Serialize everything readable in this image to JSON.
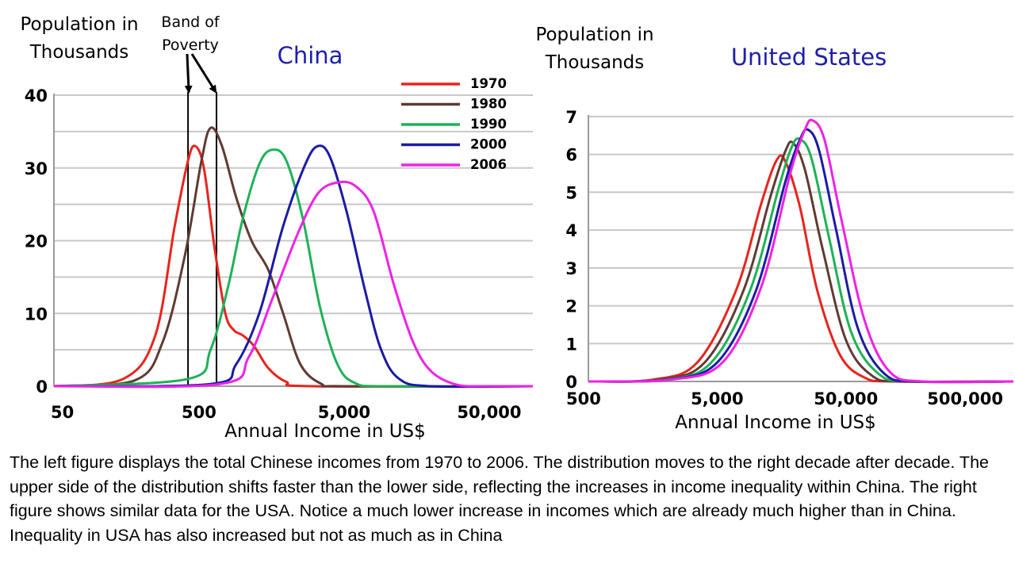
{
  "chart_data": [
    {
      "type": "line",
      "title": "China",
      "ylabel": "Population in Thousands",
      "xlabel": "Annual Income in US$",
      "x_scale": "log",
      "xlim": [
        50,
        100000
      ],
      "ylim": [
        0,
        40
      ],
      "yticks": [
        0,
        10,
        20,
        30,
        40
      ],
      "xticks": [
        {
          "value": 50,
          "label": "50"
        },
        {
          "value": 500,
          "label": "500"
        },
        {
          "value": 5000,
          "label": "5,000"
        },
        {
          "value": 50000,
          "label": "50,000"
        }
      ],
      "grid": true,
      "legend_position": "top-right",
      "band": {
        "label": "Band of Poverty",
        "from": 420,
        "to": 660
      },
      "series": [
        {
          "name": "1970",
          "color": "#e8241c",
          "points": [
            [
              50,
              0
            ],
            [
              150,
              1
            ],
            [
              250,
              7
            ],
            [
              340,
              22
            ],
            [
              420,
              31
            ],
            [
              470,
              33
            ],
            [
              540,
              30
            ],
            [
              640,
              19
            ],
            [
              760,
              10
            ],
            [
              870,
              7.7
            ],
            [
              1000,
              7
            ],
            [
              1200,
              5.5
            ],
            [
              1500,
              2.5
            ],
            [
              2000,
              0.6
            ],
            [
              3000,
              0
            ],
            [
              100000,
              0
            ]
          ]
        },
        {
          "name": "1980",
          "color": "#603a33",
          "points": [
            [
              50,
              0
            ],
            [
              180,
              0.8
            ],
            [
              280,
              6
            ],
            [
              400,
              18
            ],
            [
              520,
              31
            ],
            [
              600,
              35.5
            ],
            [
              720,
              33
            ],
            [
              900,
              26
            ],
            [
              1150,
              20
            ],
            [
              1500,
              16
            ],
            [
              1900,
              10
            ],
            [
              2500,
              3
            ],
            [
              3500,
              0.3
            ],
            [
              5000,
              0
            ],
            [
              100000,
              0
            ]
          ]
        },
        {
          "name": "1990",
          "color": "#1db257",
          "points": [
            [
              50,
              0
            ],
            [
              420,
              1
            ],
            [
              600,
              5
            ],
            [
              800,
              14
            ],
            [
              1000,
              23
            ],
            [
              1300,
              30.5
            ],
            [
              1600,
              32.5
            ],
            [
              2000,
              31
            ],
            [
              2600,
              23
            ],
            [
              3400,
              11
            ],
            [
              4500,
              3
            ],
            [
              6000,
              0.4
            ],
            [
              10000,
              0
            ],
            [
              100000,
              0
            ]
          ]
        },
        {
          "name": "2000",
          "color": "#1b1ba5",
          "points": [
            [
              50,
              0
            ],
            [
              600,
              0.3
            ],
            [
              900,
              3
            ],
            [
              1300,
              10
            ],
            [
              1900,
              22
            ],
            [
              2700,
              30.5
            ],
            [
              3300,
              33
            ],
            [
              4000,
              31.5
            ],
            [
              5200,
              24
            ],
            [
              7000,
              13
            ],
            [
              9000,
              5
            ],
            [
              12000,
              1
            ],
            [
              20000,
              0
            ],
            [
              100000,
              0
            ]
          ]
        },
        {
          "name": "2006",
          "color": "#ee22e6",
          "points": [
            [
              50,
              0
            ],
            [
              700,
              0.3
            ],
            [
              1100,
              4
            ],
            [
              1600,
              12
            ],
            [
              2400,
              21
            ],
            [
              3300,
              26.5
            ],
            [
              4500,
              28
            ],
            [
              6000,
              27.5
            ],
            [
              8000,
              24
            ],
            [
              11000,
              14
            ],
            [
              15000,
              6
            ],
            [
              20000,
              2
            ],
            [
              30000,
              0.2
            ],
            [
              50000,
              0
            ],
            [
              100000,
              0
            ]
          ]
        }
      ]
    },
    {
      "type": "line",
      "title": "United States",
      "ylabel": "Population in Thousands",
      "xlabel": "Annual Income in US$",
      "x_scale": "log",
      "xlim": [
        500,
        1000000
      ],
      "ylim": [
        0,
        7
      ],
      "yticks": [
        0,
        1,
        2,
        3,
        4,
        5,
        6,
        7
      ],
      "xticks": [
        {
          "value": 500,
          "label": "500"
        },
        {
          "value": 5000,
          "label": "5,000"
        },
        {
          "value": 50000,
          "label": "50,000"
        },
        {
          "value": 500000,
          "label": "500,000"
        }
      ],
      "grid": true,
      "series": [
        {
          "name": "1970",
          "color": "#e8241c",
          "points": [
            [
              500,
              0
            ],
            [
              1600,
              0.05
            ],
            [
              3500,
              0.5
            ],
            [
              7000,
              2.4
            ],
            [
              11000,
              4.7
            ],
            [
              14500,
              5.85
            ],
            [
              17000,
              5.8
            ],
            [
              22000,
              4.6
            ],
            [
              30000,
              2.4
            ],
            [
              45000,
              0.7
            ],
            [
              70000,
              0.1
            ],
            [
              120000,
              0
            ],
            [
              1000000,
              0
            ]
          ]
        },
        {
          "name": "1980",
          "color": "#603a33",
          "points": [
            [
              500,
              0
            ],
            [
              1800,
              0.05
            ],
            [
              4000,
              0.5
            ],
            [
              8000,
              2.4
            ],
            [
              13000,
              4.9
            ],
            [
              17000,
              6.1
            ],
            [
              19500,
              6.3
            ],
            [
              24000,
              5.6
            ],
            [
              33000,
              3.5
            ],
            [
              50000,
              1.1
            ],
            [
              80000,
              0.15
            ],
            [
              140000,
              0
            ],
            [
              1000000,
              0
            ]
          ]
        },
        {
          "name": "1990",
          "color": "#1db257",
          "points": [
            [
              500,
              0
            ],
            [
              2000,
              0.05
            ],
            [
              4500,
              0.5
            ],
            [
              9000,
              2.4
            ],
            [
              15000,
              5.1
            ],
            [
              19000,
              6.2
            ],
            [
              22000,
              6.4
            ],
            [
              27000,
              5.9
            ],
            [
              37000,
              3.8
            ],
            [
              55000,
              1.3
            ],
            [
              90000,
              0.2
            ],
            [
              160000,
              0
            ],
            [
              1000000,
              0
            ]
          ]
        },
        {
          "name": "2000",
          "color": "#1b1ba5",
          "points": [
            [
              500,
              0
            ],
            [
              2100,
              0.05
            ],
            [
              5000,
              0.5
            ],
            [
              10000,
              2.4
            ],
            [
              17000,
              5.3
            ],
            [
              22000,
              6.4
            ],
            [
              25500,
              6.65
            ],
            [
              31000,
              6.1
            ],
            [
              42000,
              4.0
            ],
            [
              62000,
              1.4
            ],
            [
              100000,
              0.2
            ],
            [
              180000,
              0
            ],
            [
              1000000,
              0
            ]
          ]
        },
        {
          "name": "2006",
          "color": "#ee22e6",
          "points": [
            [
              500,
              0
            ],
            [
              2200,
              0.05
            ],
            [
              5500,
              0.5
            ],
            [
              11000,
              2.5
            ],
            [
              18500,
              5.5
            ],
            [
              24000,
              6.65
            ],
            [
              27500,
              6.9
            ],
            [
              34000,
              6.4
            ],
            [
              46000,
              4.3
            ],
            [
              70000,
              1.6
            ],
            [
              110000,
              0.25
            ],
            [
              200000,
              0
            ],
            [
              1000000,
              0
            ]
          ]
        }
      ]
    }
  ],
  "caption": "The left figure displays the total Chinese incomes from 1970 to 2006. The distribution moves to the right decade after decade.  The upper side of the distribution shifts faster than the lower side, reflecting the increases in income inequality within China.  The right figure shows similar data for the USA.  Notice a much lower increase in incomes which are already much higher than in China.  Inequality in USA has also increased but not as much as in China"
}
